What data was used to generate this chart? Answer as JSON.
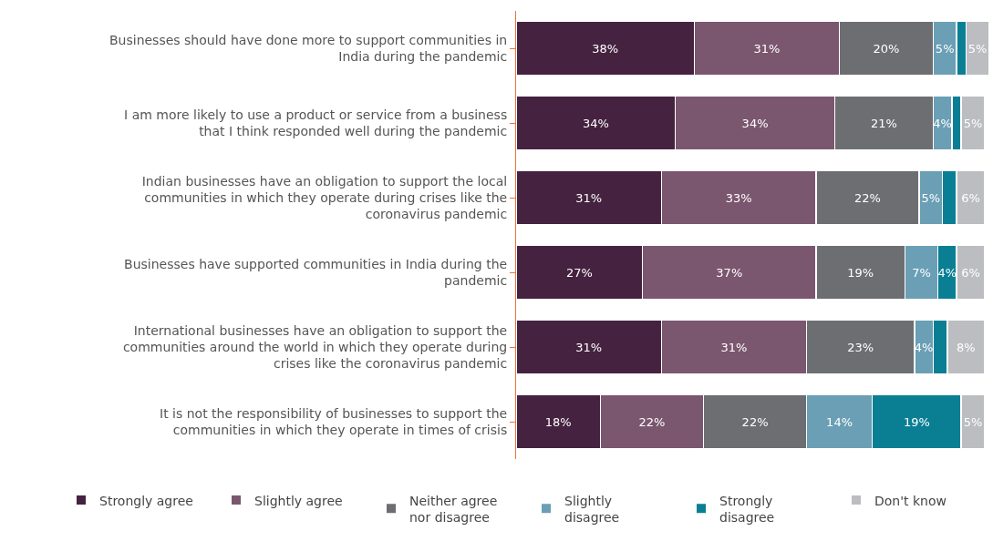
{
  "chart_data": {
    "type": "bar",
    "orientation": "horizontal",
    "stacked": true,
    "legend": "bottom",
    "tick_labels": "y",
    "xlim": [
      0,
      101
    ],
    "categories": [
      "Businesses should have done more to support communities in India during the pandemic",
      "I am more likely to use a product or service from a business that I think responded well during the pandemic",
      "Indian businesses have an obligation to support the local communities in which they operate during crises like the coronavirus pandemic",
      "Businesses have supported communities in India during the pandemic",
      "International businesses have an obligation to support the communities around the world in which they operate during crises like the coronavirus pandemic",
      "It is not the responsibility of businesses to support the communities in which they operate in times of crisis"
    ],
    "series": [
      {
        "name": "Strongly agree",
        "color": "#45223f",
        "values": [
          38,
          34,
          31,
          27,
          31,
          18
        ],
        "value_labels": [
          "38%",
          "34%",
          "31%",
          "27%",
          "31%",
          "18%"
        ]
      },
      {
        "name": "Slightly agree",
        "color": "#7b566f",
        "values": [
          31,
          34,
          33,
          37,
          31,
          22
        ],
        "value_labels": [
          "31%",
          "34%",
          "33%",
          "37%",
          "31%",
          "22%"
        ]
      },
      {
        "name": "Neither agree nor disagree",
        "color": "#6d6e71",
        "values": [
          20,
          21,
          22,
          19,
          23,
          22
        ],
        "value_labels": [
          "20%",
          "21%",
          "22%",
          "19%",
          "23%",
          "22%"
        ]
      },
      {
        "name": "Slightly disagree",
        "color": "#6a9fb5",
        "values": [
          5,
          4,
          5,
          7,
          4,
          14
        ],
        "value_labels": [
          "5%",
          "4%",
          "5%",
          "7%",
          "4%",
          "14%"
        ]
      },
      {
        "name": "Strongly disagree",
        "color": "#0a7f94",
        "values": [
          2,
          2,
          3,
          4,
          3,
          19
        ],
        "value_labels": [
          null,
          null,
          null,
          "4%",
          null,
          "19%"
        ]
      },
      {
        "name": "Don't know",
        "color": "#bcbdc0",
        "values": [
          5,
          5,
          6,
          6,
          8,
          5
        ],
        "value_labels": [
          "5%",
          "5%",
          "6%",
          "6%",
          "8%",
          "5%"
        ]
      }
    ]
  }
}
